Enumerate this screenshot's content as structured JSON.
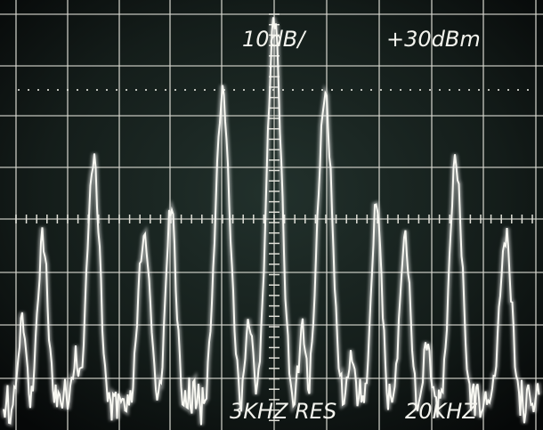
{
  "screen": {
    "scale": "10dB/",
    "reference": "+30dBm",
    "resolution": "3KHZ RES",
    "span": "20KHZ"
  }
}
